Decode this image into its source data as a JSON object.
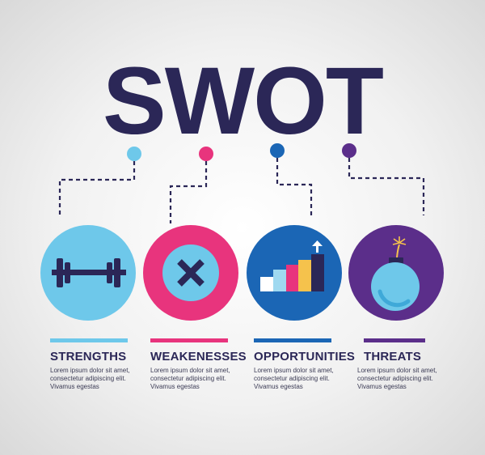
{
  "title": "SWOT",
  "colors": {
    "navy": "#2b2757",
    "light_blue": "#6ec8ea",
    "pink": "#e8347d",
    "blue": "#1b66b5",
    "purple": "#5b2e8a"
  },
  "items": [
    {
      "key": "strengths",
      "label": "STRENGTHS",
      "icon": "barbell-icon",
      "color": "#6ec8ea",
      "desc": [
        "Lorem ipsum dolor sit amet,",
        "consectetur adipiscing elit.",
        "Vivamus egestas"
      ]
    },
    {
      "key": "weaknesses",
      "label": "WEAKENESSES",
      "icon": "x-mark-icon",
      "color": "#e8347d",
      "desc": [
        "Lorem ipsum dolor sit amet,",
        "consectetur adipiscing elit.",
        "Vivamus egestas"
      ]
    },
    {
      "key": "opportunities",
      "label": "OPPORTUNITIES",
      "icon": "growth-chart-icon",
      "color": "#1b66b5",
      "desc": [
        "Lorem ipsum dolor sit amet,",
        "consectetur adipiscing elit.",
        "Vivamus egestas"
      ]
    },
    {
      "key": "threats",
      "label": "THREATS",
      "icon": "bomb-icon",
      "color": "#5b2e8a",
      "desc": [
        "Lorem ipsum dolor sit amet,",
        "consectetur adipiscing elit.",
        "Vivamus egestas"
      ]
    }
  ]
}
